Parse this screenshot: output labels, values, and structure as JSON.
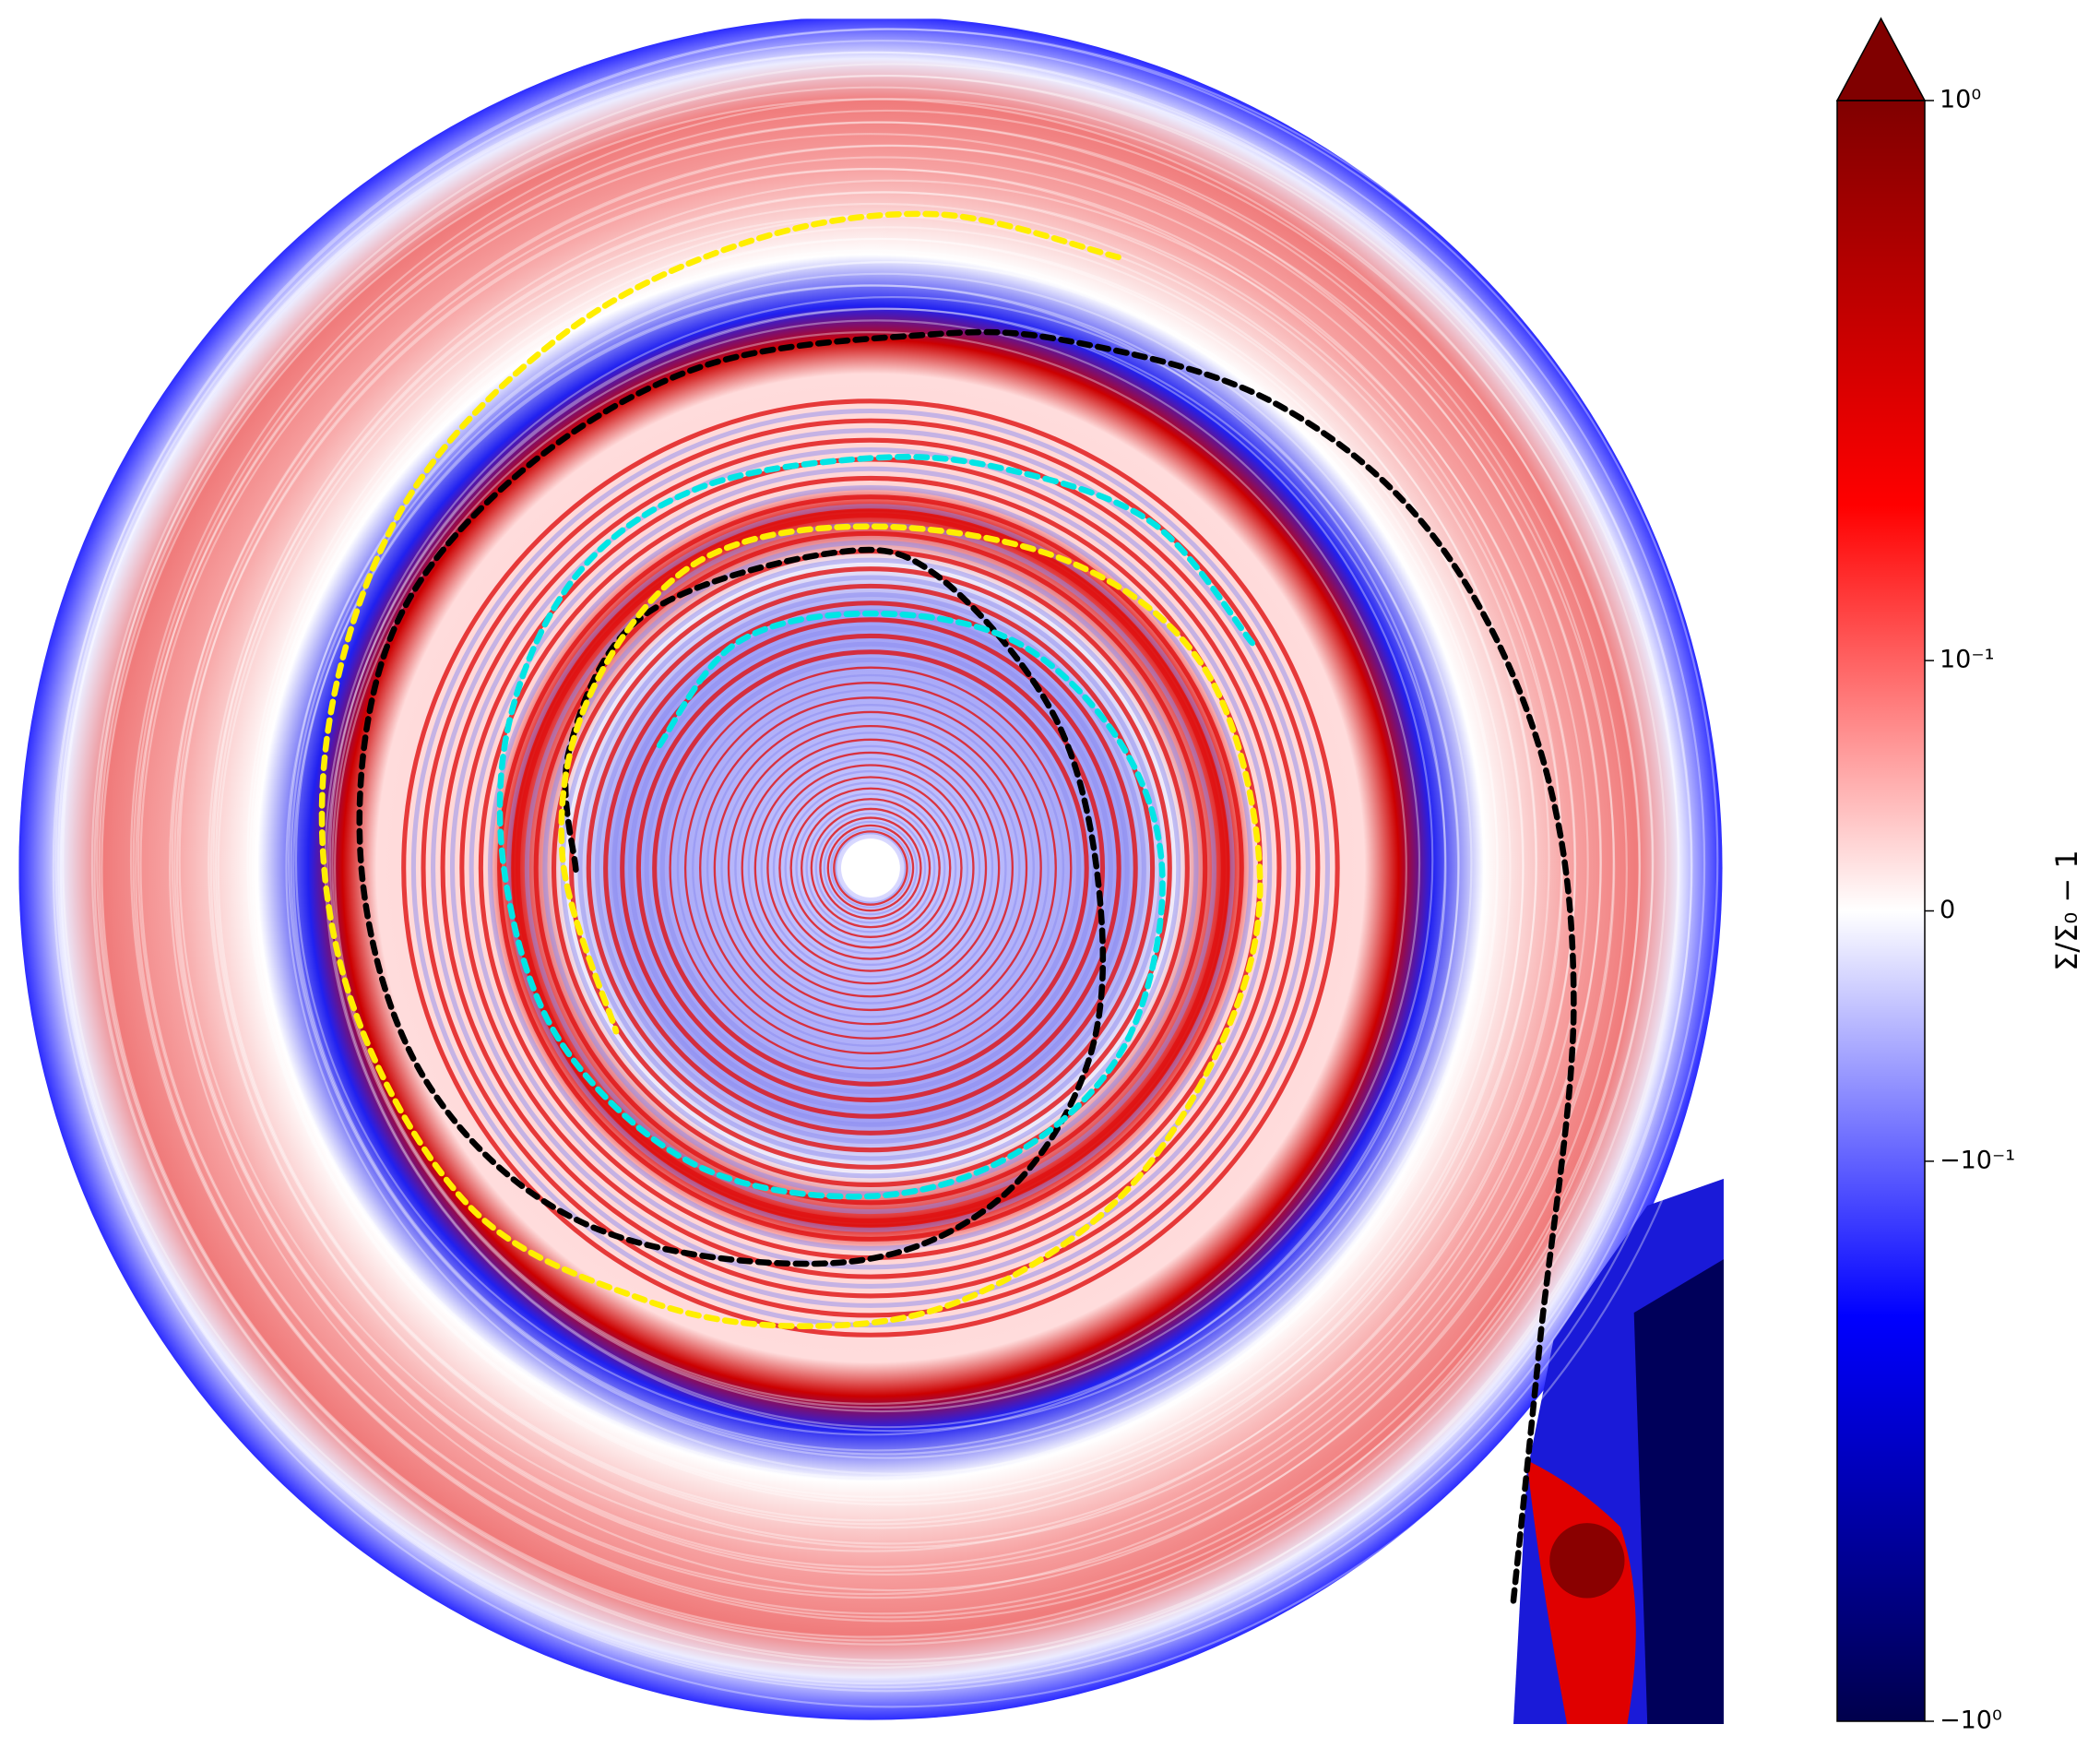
{
  "chart_data": {
    "type": "image",
    "colorbar": {
      "label": "Σ/Σ₀ − 1",
      "scale": "symlog",
      "linthresh": 0.1,
      "linscale": 0.447,
      "clim": [
        -1,
        1
      ],
      "extend": "max",
      "colormap": [
        "#00004c",
        "#0000ff",
        "#ffffff",
        "#ff0000",
        "#800000"
      ],
      "cticks": [
        {
          "value": 1,
          "label": "10⁰"
        },
        {
          "value": 0.1,
          "label": "10⁻¹"
        },
        0,
        {
          "value": -0.1,
          "label": "−10⁻¹"
        },
        {
          "value": -1,
          "label": "−10⁰"
        }
      ]
    }
  }
}
